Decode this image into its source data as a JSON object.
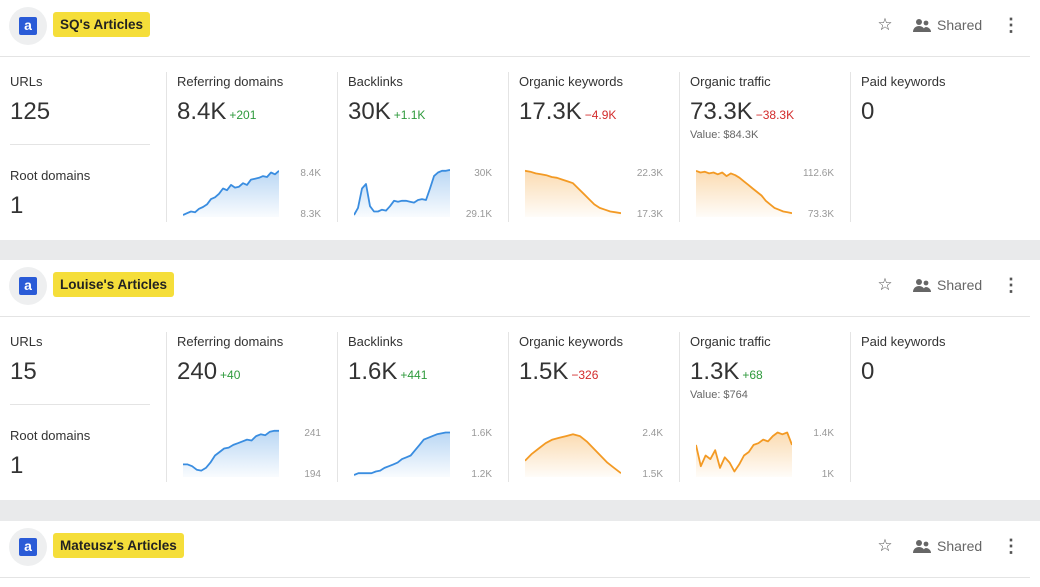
{
  "cards": [
    {
      "title": "SQ's Articles",
      "shared_label": "Shared",
      "urls_label": "URLs",
      "urls_value": "125",
      "root_label": "Root domains",
      "root_value": "1",
      "metrics": [
        {
          "label": "Referring domains",
          "value": "8.4K",
          "delta": "+201",
          "trend": "up",
          "scale_top": "8.4K",
          "scale_bottom": "8.3K"
        },
        {
          "label": "Backlinks",
          "value": "30K",
          "delta": "+1.1K",
          "trend": "up",
          "scale_top": "30K",
          "scale_bottom": "29.1K"
        },
        {
          "label": "Organic keywords",
          "value": "17.3K",
          "delta": "−4.9K",
          "trend": "down",
          "scale_top": "22.3K",
          "scale_bottom": "17.3K"
        },
        {
          "label": "Organic traffic",
          "value": "73.3K",
          "delta": "−38.3K",
          "trend": "down",
          "sub": "Value: $84.3K",
          "scale_top": "112.6K",
          "scale_bottom": "73.3K"
        }
      ],
      "paid_label": "Paid keywords",
      "paid_value": "0"
    },
    {
      "title": "Louise's Articles",
      "shared_label": "Shared",
      "urls_label": "URLs",
      "urls_value": "15",
      "root_label": "Root domains",
      "root_value": "1",
      "metrics": [
        {
          "label": "Referring domains",
          "value": "240",
          "delta": "+40",
          "trend": "up",
          "scale_top": "241",
          "scale_bottom": "194"
        },
        {
          "label": "Backlinks",
          "value": "1.6K",
          "delta": "+441",
          "trend": "up",
          "scale_top": "1.6K",
          "scale_bottom": "1.2K"
        },
        {
          "label": "Organic keywords",
          "value": "1.5K",
          "delta": "−326",
          "trend": "down",
          "scale_top": "2.4K",
          "scale_bottom": "1.5K"
        },
        {
          "label": "Organic traffic",
          "value": "1.3K",
          "delta": "+68",
          "trend": "up",
          "sub": "Value: $764",
          "scale_top": "1.4K",
          "scale_bottom": "1K"
        }
      ],
      "paid_label": "Paid keywords",
      "paid_value": "0"
    },
    {
      "title": "Mateusz's Articles",
      "shared_label": "Shared"
    }
  ],
  "colors": {
    "accent_blue": "#3a8de0",
    "accent_orange": "#f39a24",
    "pill": "#f5de3a"
  },
  "sparklines": [
    [
      [
        0,
        2,
        4,
        3,
        7,
        9,
        12,
        18,
        20,
        24,
        30,
        28,
        34,
        31,
        32,
        36,
        34,
        40,
        41,
        42,
        44,
        43,
        48,
        46,
        50
      ],
      [
        0,
        8,
        30,
        35,
        10,
        4,
        4,
        6,
        5,
        10,
        16,
        15,
        16,
        16,
        15,
        14,
        17,
        18,
        17,
        30,
        44,
        48,
        50,
        50,
        51
      ],
      [
        50,
        49,
        47,
        46,
        45,
        43,
        42,
        40,
        38,
        36,
        30,
        24,
        18,
        12,
        8,
        6,
        4,
        3,
        2
      ],
      [
        50,
        48,
        49,
        47,
        48,
        46,
        48,
        44,
        47,
        45,
        42,
        38,
        34,
        30,
        26,
        22,
        16,
        12,
        8,
        6,
        4,
        3,
        2
      ]
    ],
    [
      [
        12,
        12,
        10,
        6,
        5,
        8,
        14,
        22,
        26,
        30,
        31,
        34,
        36,
        38,
        40,
        39,
        44,
        46,
        45,
        49,
        50,
        50
      ],
      [
        0,
        2,
        2,
        2,
        2,
        4,
        5,
        8,
        10,
        12,
        14,
        18,
        20,
        22,
        28,
        34,
        40,
        42,
        44,
        46,
        47,
        48,
        48
      ],
      [
        16,
        24,
        30,
        36,
        40,
        42,
        44,
        46,
        44,
        38,
        30,
        22,
        14,
        8,
        2
      ],
      [
        34,
        10,
        22,
        18,
        28,
        8,
        20,
        14,
        4,
        12,
        22,
        26,
        34,
        36,
        40,
        38,
        44,
        48,
        46,
        48,
        34
      ]
    ]
  ]
}
